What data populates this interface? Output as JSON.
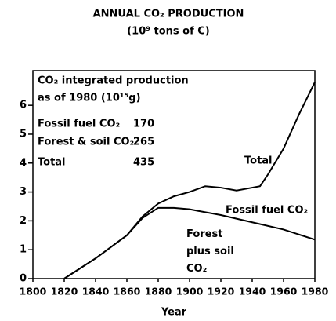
{
  "chart_data": {
    "type": "line",
    "title": "ANNUAL CO₂ PRODUCTION",
    "subtitle": "(10⁹ tons of C)",
    "x_label": "Year",
    "xlim": [
      1800,
      1980
    ],
    "xticks": [
      1800,
      1820,
      1840,
      1860,
      1880,
      1900,
      1920,
      1940,
      1960,
      1980
    ],
    "ylim": [
      0,
      7.2
    ],
    "yticks": [
      0,
      1,
      2,
      3,
      4,
      5,
      6
    ],
    "series": [
      {
        "name": "Total",
        "color": "#000000",
        "x": [
          1820,
          1840,
          1860,
          1870,
          1880,
          1890,
          1900,
          1910,
          1920,
          1930,
          1940,
          1945,
          1950,
          1960,
          1970,
          1980
        ],
        "values": [
          0,
          0.7,
          1.5,
          2.15,
          2.6,
          2.85,
          3.0,
          3.2,
          3.15,
          3.05,
          3.15,
          3.2,
          3.6,
          4.5,
          5.7,
          6.8
        ]
      },
      {
        "name": "Forest plus soil CO₂",
        "color": "#000000",
        "x": [
          1820,
          1840,
          1860,
          1870,
          1880,
          1890,
          1900,
          1920,
          1940,
          1960,
          1980
        ],
        "values": [
          0,
          0.7,
          1.5,
          2.1,
          2.45,
          2.45,
          2.4,
          2.2,
          1.95,
          1.7,
          1.35
        ]
      }
    ],
    "annotations": {
      "fossil_label": "Fossil fuel CO₂",
      "inset": {
        "heading": [
          "CO₂ integrated production",
          "as of 1980 (10¹⁵g)"
        ],
        "rows": [
          [
            "Fossil fuel CO₂",
            170
          ],
          [
            "Forest & soil CO₂",
            265
          ],
          [
            "Total",
            435
          ]
        ]
      }
    }
  }
}
